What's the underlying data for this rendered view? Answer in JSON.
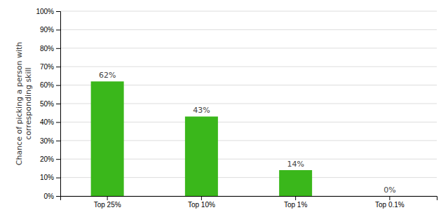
{
  "chart_data": {
    "type": "bar",
    "ylabel": "Chance of picking a person with\ncorresponding skill",
    "categories": [
      "Top 25%",
      "Top 10%",
      "Top 1%",
      "Top 0.1%"
    ],
    "values": [
      62,
      43,
      14,
      0
    ],
    "value_labels": [
      "62%",
      "43%",
      "14%",
      "0%"
    ],
    "data_labels": true,
    "color": "#3ab71b",
    "ylim": [
      0,
      100
    ],
    "yticks": [
      {
        "value": 0,
        "label": "0%"
      },
      {
        "value": 10,
        "label": "10%"
      },
      {
        "value": 20,
        "label": "20%"
      },
      {
        "value": 30,
        "label": "30%"
      },
      {
        "value": 40,
        "label": "40%"
      },
      {
        "value": 50,
        "label": "50%"
      },
      {
        "value": 60,
        "label": "60%"
      },
      {
        "value": 70,
        "label": "70%"
      },
      {
        "value": 80,
        "label": "80%"
      },
      {
        "value": 90,
        "label": "90%"
      },
      {
        "value": 100,
        "label": "100%"
      }
    ],
    "grid": true
  }
}
